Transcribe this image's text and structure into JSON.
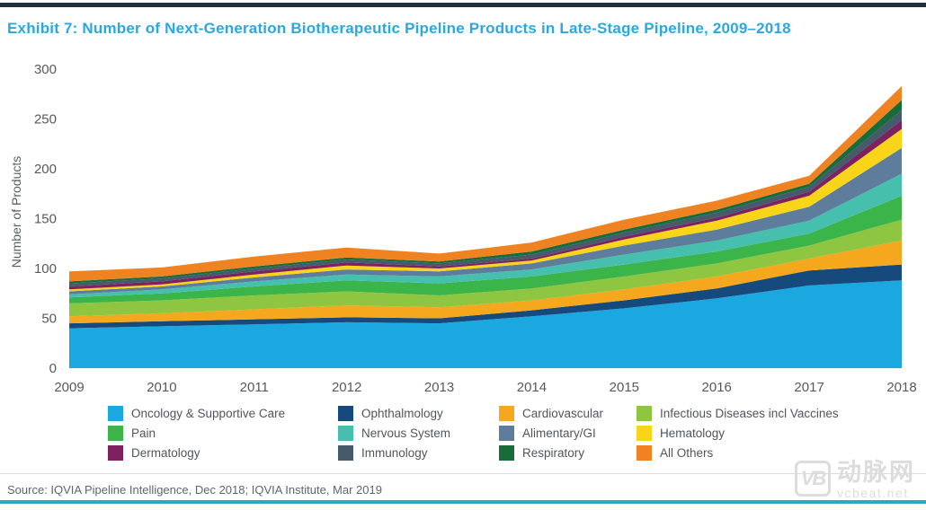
{
  "page": {
    "title": "Exhibit 7: Number of Next-Generation Biotherapeutic Pipeline Products in Late-Stage Pipeline, 2009–2018",
    "source": "Source: IQVIA Pipeline Intelligence, Dec 2018; IQVIA Institute, Mar 2019",
    "colors": {
      "title_text": "#29A9E0",
      "top_bar": "#232F3B",
      "bottom_bar": "#2EA6C8",
      "axis_text": "#54595F"
    }
  },
  "watermark": {
    "logo": "VB",
    "name": "动脉网",
    "site": "vcbeat.net"
  },
  "chart_data": {
    "type": "area",
    "stacked": true,
    "title": "Number of Next-Generation Biotherapeutic Pipeline Products in Late-Stage Pipeline, 2009–2018",
    "xlabel": "",
    "ylabel": "Number of Products",
    "x": [
      2009,
      2010,
      2011,
      2012,
      2013,
      2014,
      2015,
      2016,
      2017,
      2018
    ],
    "ylim": [
      0,
      300
    ],
    "yticks": [
      0,
      50,
      100,
      150,
      200,
      250,
      300
    ],
    "grid": false,
    "legend_position": "bottom",
    "totals_by_year": [
      97,
      101,
      112,
      121,
      115,
      126,
      149,
      168,
      193,
      283
    ],
    "series": [
      {
        "name": "Oncology & Supportive Care",
        "color": "#1BA8E0",
        "values": [
          40,
          42,
          44,
          46,
          45,
          52,
          60,
          70,
          83,
          88
        ]
      },
      {
        "name": "Ophthalmology",
        "color": "#174A7C",
        "values": [
          5,
          5,
          5,
          5,
          5,
          6,
          8,
          10,
          15,
          16
        ]
      },
      {
        "name": "Cardiovascular",
        "color": "#F5A81D",
        "values": [
          7,
          8,
          10,
          12,
          11,
          10,
          11,
          12,
          12,
          24
        ]
      },
      {
        "name": "Infectious Diseases incl Vaccines",
        "color": "#8EC641",
        "values": [
          13,
          13,
          14,
          14,
          12,
          12,
          13,
          13,
          13,
          21
        ]
      },
      {
        "name": "Pain",
        "color": "#3BB54A",
        "values": [
          6,
          7,
          9,
          11,
          12,
          12,
          12,
          12,
          12,
          24
        ]
      },
      {
        "name": "Nervous System",
        "color": "#47BFAE",
        "values": [
          3,
          4,
          5,
          6,
          7,
          7,
          10,
          11,
          13,
          22
        ]
      },
      {
        "name": "Alimentary/GI",
        "color": "#5E7D9D",
        "values": [
          3,
          3,
          4,
          5,
          5,
          6,
          9,
          11,
          14,
          26
        ]
      },
      {
        "name": "Hematology",
        "color": "#F9D51A",
        "values": [
          2,
          2,
          3,
          4,
          3,
          3,
          6,
          9,
          11,
          19
        ]
      },
      {
        "name": "Dermatology",
        "color": "#7D2161",
        "values": [
          3,
          3,
          3,
          3,
          2,
          2,
          3,
          3,
          4,
          9
        ]
      },
      {
        "name": "Immunology",
        "color": "#455A6B",
        "values": [
          3,
          3,
          3,
          3,
          3,
          4,
          4,
          5,
          5,
          10
        ]
      },
      {
        "name": "Respiratory",
        "color": "#176C3A",
        "values": [
          2,
          2,
          2,
          2,
          2,
          3,
          3,
          3,
          3,
          10
        ]
      },
      {
        "name": "All Others",
        "color": "#EF8322",
        "values": [
          10,
          9,
          10,
          10,
          8,
          9,
          10,
          9,
          8,
          14
        ]
      }
    ]
  }
}
